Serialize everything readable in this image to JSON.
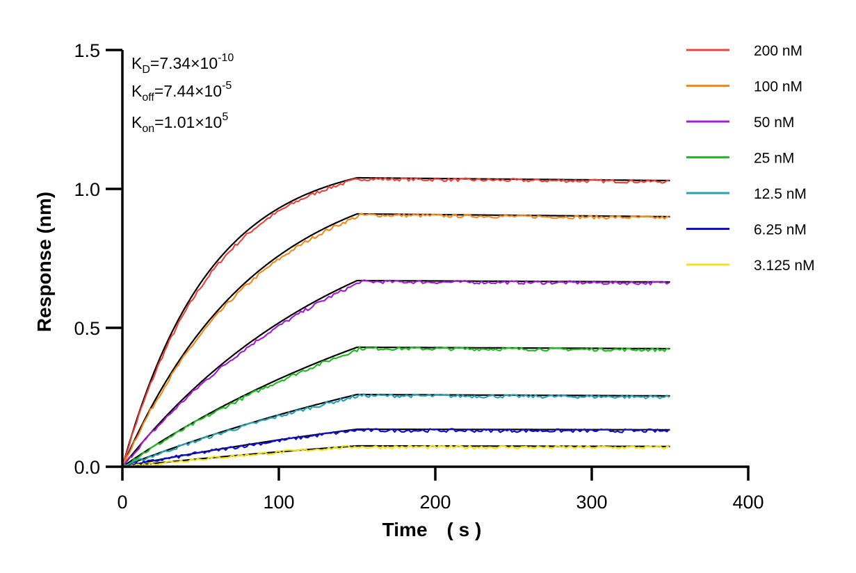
{
  "chart_data": {
    "type": "line",
    "xlabel": "Time　( s )",
    "ylabel": "Response (nm)",
    "xlim": [
      0,
      400
    ],
    "ylim": [
      0,
      1.5
    ],
    "x_ticks": [
      "0",
      "100",
      "200",
      "300",
      "400"
    ],
    "y_ticks": [
      "0.0",
      "0.5",
      "1.0",
      "1.5"
    ],
    "grid": false,
    "legend_position": "top-right",
    "association_end_s": 150,
    "dissociation_end_s": 350,
    "annotations": {
      "kd": {
        "base": "K",
        "sub": "D",
        "eq": "=7.34×10",
        "sup": "-10"
      },
      "koff": {
        "base": "K",
        "sub": "off",
        "eq": "=7.44×10",
        "sup": "-5"
      },
      "kon": {
        "base": "K",
        "sub": "on",
        "eq": "=1.01×10",
        "sup": "5"
      }
    },
    "fit_color": "#000000",
    "series": [
      {
        "name": "200 nM",
        "color": "#e8453c",
        "plateau": 1.04,
        "end": 1.03
      },
      {
        "name": "100 nM",
        "color": "#f28a1e",
        "plateau": 0.91,
        "end": 0.9
      },
      {
        "name": "50 nM",
        "color": "#a31fd0",
        "plateau": 0.67,
        "end": 0.665
      },
      {
        "name": "25 nM",
        "color": "#22bb22",
        "plateau": 0.43,
        "end": 0.425
      },
      {
        "name": "12.5 nM",
        "color": "#2aa0b4",
        "plateau": 0.26,
        "end": 0.255
      },
      {
        "name": "6.25 nM",
        "color": "#1010d0",
        "plateau": 0.135,
        "end": 0.133
      },
      {
        "name": "3.125 nM",
        "color": "#f2e21a",
        "plateau": 0.075,
        "end": 0.073
      }
    ]
  }
}
